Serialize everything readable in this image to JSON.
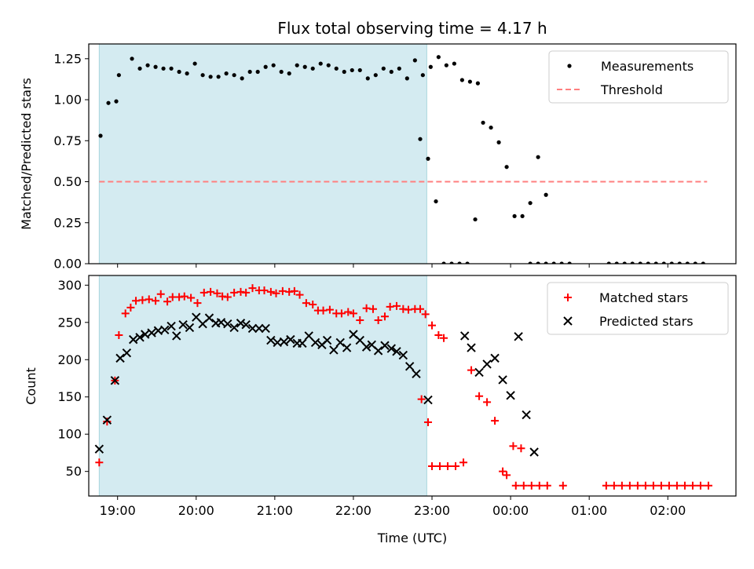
{
  "chart_data": [
    {
      "type": "scatter",
      "title": "Flux total observing time = 4.17 h",
      "xlabel": "",
      "ylabel": "Matched/Predicted stars",
      "xlim": [
        "18:38",
        "02:52"
      ],
      "ylim": [
        0,
        1.34
      ],
      "y_ticks": [
        "0.00",
        "0.25",
        "0.50",
        "0.75",
        "1.00",
        "1.25"
      ],
      "grid": false,
      "legend_position": "top-right",
      "shaded_interval": {
        "start": "18:46",
        "end": "22:56",
        "color": "#d4ebf1"
      },
      "threshold": {
        "name": "Threshold",
        "value": 0.5,
        "x_start": "18:46",
        "x_end": "02:30",
        "color": "#ff7f7f"
      },
      "series": [
        {
          "name": "Measurements",
          "color": "#000000",
          "marker": "dot",
          "points": [
            [
              "18:47",
              0.78
            ],
            [
              "18:53",
              0.98
            ],
            [
              "18:59",
              0.99
            ],
            [
              "19:01",
              1.15
            ],
            [
              "19:11",
              1.25
            ],
            [
              "19:17",
              1.19
            ],
            [
              "19:23",
              1.21
            ],
            [
              "19:29",
              1.2
            ],
            [
              "19:35",
              1.19
            ],
            [
              "19:41",
              1.19
            ],
            [
              "19:47",
              1.17
            ],
            [
              "19:53",
              1.16
            ],
            [
              "19:59",
              1.22
            ],
            [
              "20:05",
              1.15
            ],
            [
              "20:11",
              1.14
            ],
            [
              "20:17",
              1.14
            ],
            [
              "20:23",
              1.16
            ],
            [
              "20:29",
              1.15
            ],
            [
              "20:35",
              1.13
            ],
            [
              "20:41",
              1.17
            ],
            [
              "20:47",
              1.17
            ],
            [
              "20:53",
              1.2
            ],
            [
              "20:59",
              1.21
            ],
            [
              "21:05",
              1.17
            ],
            [
              "21:11",
              1.16
            ],
            [
              "21:17",
              1.21
            ],
            [
              "21:23",
              1.2
            ],
            [
              "21:29",
              1.19
            ],
            [
              "21:35",
              1.22
            ],
            [
              "21:41",
              1.21
            ],
            [
              "21:47",
              1.19
            ],
            [
              "21:53",
              1.17
            ],
            [
              "21:59",
              1.18
            ],
            [
              "22:05",
              1.18
            ],
            [
              "22:11",
              1.13
            ],
            [
              "22:17",
              1.15
            ],
            [
              "22:23",
              1.19
            ],
            [
              "22:29",
              1.17
            ],
            [
              "22:35",
              1.19
            ],
            [
              "22:41",
              1.13
            ],
            [
              "22:47",
              1.24
            ],
            [
              "22:53",
              1.15
            ],
            [
              "22:59",
              1.2
            ],
            [
              "23:05",
              1.26
            ],
            [
              "23:11",
              1.21
            ],
            [
              "23:17",
              1.22
            ],
            [
              "23:23",
              1.12
            ],
            [
              "23:29",
              1.11
            ],
            [
              "23:35",
              1.1
            ],
            [
              "22:51",
              0.76
            ],
            [
              "22:57",
              0.64
            ],
            [
              "23:03",
              0.38
            ],
            [
              "23:09",
              0
            ],
            [
              "23:15",
              0
            ],
            [
              "23:21",
              0
            ],
            [
              "23:27",
              0
            ],
            [
              "23:33",
              0.27
            ],
            [
              "23:39",
              0.86
            ],
            [
              "23:45",
              0.83
            ],
            [
              "23:51",
              0.74
            ],
            [
              "23:57",
              0.59
            ],
            [
              "00:03",
              0.29
            ],
            [
              "00:09",
              0.29
            ],
            [
              "00:15",
              0.37
            ],
            [
              "00:21",
              0.65
            ],
            [
              "00:27",
              0.42
            ],
            [
              "00:15",
              0
            ],
            [
              "00:21",
              0
            ],
            [
              "00:27",
              0
            ],
            [
              "00:33",
              0
            ],
            [
              "00:39",
              0
            ],
            [
              "00:45",
              0
            ],
            [
              "01:15",
              0
            ],
            [
              "01:21",
              0
            ],
            [
              "01:27",
              0
            ],
            [
              "01:33",
              0
            ],
            [
              "01:39",
              0
            ],
            [
              "01:45",
              0
            ],
            [
              "01:51",
              0
            ],
            [
              "01:57",
              0
            ],
            [
              "02:03",
              0
            ],
            [
              "02:09",
              0
            ],
            [
              "02:15",
              0
            ],
            [
              "02:21",
              0
            ],
            [
              "02:27",
              0
            ]
          ]
        },
        {
          "name": "Threshold",
          "color": "#ff7f7f",
          "style": "dashed"
        }
      ]
    },
    {
      "type": "scatter",
      "xlabel": "Time (UTC)",
      "ylabel": "Count",
      "xlim": [
        "18:38",
        "02:52"
      ],
      "ylim": [
        17,
        313
      ],
      "x_ticks": [
        "19:00",
        "20:00",
        "21:00",
        "22:00",
        "23:00",
        "00:00",
        "01:00",
        "02:00"
      ],
      "y_ticks": [
        "50",
        "100",
        "150",
        "200",
        "250",
        "300"
      ],
      "grid": false,
      "legend_position": "top-right",
      "shaded_interval": {
        "start": "18:46",
        "end": "22:56",
        "color": "#d4ebf1"
      },
      "series": [
        {
          "name": "Matched stars",
          "color": "#ff0000",
          "marker": "plus",
          "points": [
            [
              "18:46",
              62
            ],
            [
              "18:52",
              117
            ],
            [
              "18:58",
              172
            ],
            [
              "19:01",
              233
            ],
            [
              "19:06",
              262
            ],
            [
              "19:10",
              270
            ],
            [
              "19:14",
              279
            ],
            [
              "19:19",
              280
            ],
            [
              "19:24",
              281
            ],
            [
              "19:29",
              279
            ],
            [
              "19:33",
              288
            ],
            [
              "19:38",
              278
            ],
            [
              "19:42",
              284
            ],
            [
              "19:47",
              284
            ],
            [
              "19:51",
              285
            ],
            [
              "19:56",
              283
            ],
            [
              "20:01",
              276
            ],
            [
              "20:06",
              290
            ],
            [
              "20:11",
              291
            ],
            [
              "20:16",
              289
            ],
            [
              "20:20",
              285
            ],
            [
              "20:24",
              284
            ],
            [
              "20:29",
              290
            ],
            [
              "20:34",
              291
            ],
            [
              "20:38",
              290
            ],
            [
              "20:43",
              296
            ],
            [
              "20:48",
              293
            ],
            [
              "20:52",
              293
            ],
            [
              "20:57",
              291
            ],
            [
              "21:01",
              289
            ],
            [
              "21:06",
              292
            ],
            [
              "21:11",
              291
            ],
            [
              "21:15",
              292
            ],
            [
              "21:19",
              287
            ],
            [
              "21:24",
              276
            ],
            [
              "21:29",
              274
            ],
            [
              "21:33",
              266
            ],
            [
              "21:37",
              266
            ],
            [
              "21:42",
              267
            ],
            [
              "21:47",
              262
            ],
            [
              "21:51",
              262
            ],
            [
              "21:56",
              264
            ],
            [
              "22:00",
              262
            ],
            [
              "22:05",
              253
            ],
            [
              "22:10",
              269
            ],
            [
              "22:15",
              268
            ],
            [
              "22:19",
              253
            ],
            [
              "22:24",
              258
            ],
            [
              "22:28",
              271
            ],
            [
              "22:33",
              272
            ],
            [
              "22:38",
              268
            ],
            [
              "22:42",
              267
            ],
            [
              "22:47",
              268
            ],
            [
              "22:51",
              268
            ],
            [
              "22:55",
              261
            ],
            [
              "23:00",
              246
            ],
            [
              "23:05",
              233
            ],
            [
              "23:09",
              229
            ],
            [
              "22:52",
              147
            ],
            [
              "22:57",
              116
            ],
            [
              "23:00",
              57
            ],
            [
              "23:06",
              57
            ],
            [
              "23:12",
              57
            ],
            [
              "23:18",
              57
            ],
            [
              "23:24",
              62
            ],
            [
              "23:30",
              186
            ],
            [
              "23:36",
              151
            ],
            [
              "23:42",
              143
            ],
            [
              "23:48",
              118
            ],
            [
              "23:54",
              50
            ],
            [
              "23:57",
              45
            ],
            [
              "00:02",
              84
            ],
            [
              "00:08",
              81
            ],
            [
              "00:04",
              31
            ],
            [
              "00:10",
              31
            ],
            [
              "00:16",
              31
            ],
            [
              "00:22",
              31
            ],
            [
              "00:28",
              31
            ],
            [
              "00:40",
              31
            ],
            [
              "01:13",
              31
            ],
            [
              "01:19",
              31
            ],
            [
              "01:25",
              31
            ],
            [
              "01:31",
              31
            ],
            [
              "01:37",
              31
            ],
            [
              "01:43",
              31
            ],
            [
              "01:49",
              31
            ],
            [
              "01:55",
              31
            ],
            [
              "02:01",
              31
            ],
            [
              "02:07",
              31
            ],
            [
              "02:13",
              31
            ],
            [
              "02:19",
              31
            ],
            [
              "02:25",
              31
            ],
            [
              "02:31",
              31
            ]
          ]
        },
        {
          "name": "Predicted stars",
          "color": "#000000",
          "marker": "x",
          "points": [
            [
              "18:46",
              80
            ],
            [
              "18:52",
              119
            ],
            [
              "18:58",
              172
            ],
            [
              "19:02",
              202
            ],
            [
              "19:07",
              209
            ],
            [
              "19:12",
              227
            ],
            [
              "19:17",
              230
            ],
            [
              "19:21",
              234
            ],
            [
              "19:26",
              236
            ],
            [
              "19:31",
              239
            ],
            [
              "19:36",
              240
            ],
            [
              "19:41",
              245
            ],
            [
              "19:45",
              232
            ],
            [
              "19:50",
              247
            ],
            [
              "19:55",
              243
            ],
            [
              "20:00",
              257
            ],
            [
              "20:05",
              248
            ],
            [
              "20:10",
              256
            ],
            [
              "20:15",
              249
            ],
            [
              "20:19",
              250
            ],
            [
              "20:24",
              248
            ],
            [
              "20:29",
              243
            ],
            [
              "20:34",
              249
            ],
            [
              "20:38",
              247
            ],
            [
              "20:43",
              242
            ],
            [
              "20:48",
              242
            ],
            [
              "20:53",
              242
            ],
            [
              "20:57",
              226
            ],
            [
              "21:02",
              223
            ],
            [
              "21:07",
              224
            ],
            [
              "21:12",
              227
            ],
            [
              "21:17",
              222
            ],
            [
              "21:21",
              222
            ],
            [
              "21:26",
              232
            ],
            [
              "21:31",
              223
            ],
            [
              "21:36",
              220
            ],
            [
              "21:40",
              226
            ],
            [
              "21:45",
              213
            ],
            [
              "21:50",
              223
            ],
            [
              "21:55",
              216
            ],
            [
              "22:00",
              234
            ],
            [
              "22:05",
              226
            ],
            [
              "22:10",
              217
            ],
            [
              "22:14",
              220
            ],
            [
              "22:19",
              212
            ],
            [
              "22:24",
              219
            ],
            [
              "22:29",
              215
            ],
            [
              "22:33",
              211
            ],
            [
              "22:38",
              206
            ],
            [
              "22:43",
              191
            ],
            [
              "22:48",
              181
            ],
            [
              "22:57",
              146
            ],
            [
              "23:25",
              232
            ],
            [
              "23:30",
              216
            ],
            [
              "23:36",
              183
            ],
            [
              "23:42",
              194
            ],
            [
              "23:48",
              202
            ],
            [
              "23:54",
              173
            ],
            [
              "00:00",
              152
            ],
            [
              "00:06",
              231
            ],
            [
              "00:12",
              126
            ],
            [
              "00:18",
              76
            ]
          ]
        }
      ]
    }
  ]
}
